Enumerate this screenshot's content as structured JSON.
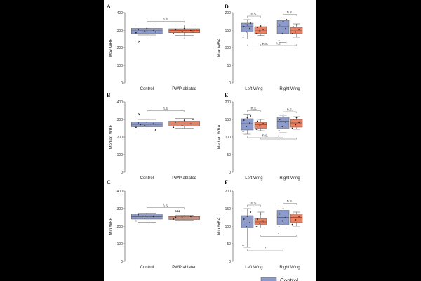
{
  "colors": {
    "control": "#8d9bcc",
    "pwp_ablated": "#ec8060",
    "axis": "#444444",
    "box_edge": "#555555"
  },
  "legend": {
    "control_label": "Control"
  },
  "chart_data": [
    {
      "panel": "A",
      "type": "box",
      "ylabel": "Max WBF",
      "ylim": [
        0,
        400
      ],
      "yticks": [
        0,
        100,
        200,
        300,
        400
      ],
      "categories": [
        "Control",
        "PWP ablated"
      ],
      "groups": [
        {
          "name": "Control",
          "q1": 280,
          "median": 300,
          "q3": 310,
          "whisker_low": 272,
          "whisker_high": 330,
          "points": [
            285,
            295,
            300,
            305,
            310,
            290
          ],
          "outliers": [
            235
          ]
        },
        {
          "name": "PWP ablated",
          "q1": 285,
          "median": 297,
          "q3": 308,
          "whisker_low": 270,
          "whisker_high": 330,
          "points": [
            280,
            295,
            300,
            305,
            310,
            290
          ],
          "outliers": []
        }
      ],
      "annotations": [
        {
          "label": "n.s.",
          "from": "Control",
          "to": "PWP ablated",
          "position": "above"
        },
        {
          "label": "",
          "from": "Control",
          "to": "PWP ablated",
          "position": "below"
        }
      ]
    },
    {
      "panel": "B",
      "type": "box",
      "ylabel": "Median WBF",
      "ylim": [
        0,
        400
      ],
      "yticks": [
        0,
        100,
        200,
        300,
        400
      ],
      "categories": [
        "Control",
        "PWP ablated"
      ],
      "groups": [
        {
          "name": "Control",
          "q1": 258,
          "median": 272,
          "q3": 285,
          "whisker_low": 235,
          "whisker_high": 300,
          "points": [
            255,
            265,
            275,
            280,
            285,
            240,
            270
          ],
          "outliers": [
            330
          ]
        },
        {
          "name": "PWP ablated",
          "q1": 262,
          "median": 275,
          "q3": 290,
          "whisker_low": 250,
          "whisker_high": 305,
          "points": [
            255,
            265,
            275,
            285,
            295,
            300
          ],
          "outliers": []
        }
      ],
      "annotations": [
        {
          "label": "n.s.",
          "from": "Control",
          "to": "PWP ablated",
          "position": "above"
        }
      ]
    },
    {
      "panel": "C",
      "type": "box",
      "ylabel": "Min WBF",
      "ylim": [
        0,
        400
      ],
      "yticks": [
        0,
        100,
        200,
        300,
        400
      ],
      "categories": [
        "Control",
        "PWP ablated"
      ],
      "groups": [
        {
          "name": "Control",
          "q1": 240,
          "median": 255,
          "q3": 270,
          "whisker_low": 222,
          "whisker_high": 275,
          "points": [
            230,
            245,
            255,
            265,
            270
          ],
          "outliers": []
        },
        {
          "name": "PWP ablated",
          "q1": 238,
          "median": 245,
          "q3": 255,
          "whisker_low": 235,
          "whisker_high": 262,
          "points": [
            240,
            248,
            255,
            250
          ],
          "outliers": [
            285,
            285
          ]
        }
      ],
      "annotations": [
        {
          "label": "n.s.",
          "from": "Control",
          "to": "PWP ablated",
          "position": "above"
        }
      ]
    },
    {
      "panel": "D",
      "type": "box",
      "ylabel": "Max WBA",
      "ylim": [
        0,
        200
      ],
      "yticks": [
        0,
        50,
        100,
        150,
        200
      ],
      "categories": [
        "Left Wing",
        "Right Wing"
      ],
      "groups": [
        {
          "name": "Control",
          "category": "Left Wing",
          "q1": 145,
          "median": 160,
          "q3": 170,
          "whisker_low": 125,
          "whisker_high": 180,
          "points": [
            130,
            145,
            155,
            160,
            165,
            170
          ],
          "outliers": []
        },
        {
          "name": "PWP ablated",
          "category": "Left Wing",
          "q1": 140,
          "median": 150,
          "q3": 160,
          "whisker_low": 135,
          "whisker_high": 165,
          "points": [
            140,
            148,
            152,
            158,
            162
          ],
          "outliers": []
        },
        {
          "name": "Control",
          "category": "Right Wing",
          "q1": 140,
          "median": 160,
          "q3": 178,
          "whisker_low": 115,
          "whisker_high": 185,
          "points": [
            120,
            140,
            155,
            165,
            175,
            180
          ],
          "outliers": []
        },
        {
          "name": "PWP ablated",
          "category": "Right Wing",
          "q1": 140,
          "median": 150,
          "q3": 158,
          "whisker_low": 130,
          "whisker_high": 168,
          "points": [
            140,
            145,
            152,
            160,
            165
          ],
          "outliers": []
        }
      ],
      "annotations": [
        {
          "label": "n.s.",
          "from": [
            0,
            0
          ],
          "to": [
            0,
            1
          ],
          "position": "above"
        },
        {
          "label": "n.s.",
          "from": [
            1,
            0
          ],
          "to": [
            1,
            1
          ],
          "position": "above"
        },
        {
          "label": "n.s.",
          "from": [
            0,
            0
          ],
          "to": [
            1,
            0
          ],
          "position": "below"
        },
        {
          "label": "n.s.",
          "from": [
            0,
            1
          ],
          "to": [
            1,
            1
          ],
          "position": "below"
        }
      ]
    },
    {
      "panel": "E",
      "type": "box",
      "ylabel": "Median WBA",
      "ylim": [
        0,
        200
      ],
      "yticks": [
        0,
        50,
        100,
        150,
        200
      ],
      "categories": [
        "Left Wing",
        "Right Wing"
      ],
      "groups": [
        {
          "name": "Control",
          "category": "Left Wing",
          "q1": 120,
          "median": 138,
          "q3": 152,
          "whisker_low": 108,
          "whisker_high": 165,
          "points": [
            115,
            130,
            140,
            148,
            155,
            160
          ],
          "outliers": []
        },
        {
          "name": "PWP ablated",
          "category": "Left Wing",
          "q1": 125,
          "median": 135,
          "q3": 142,
          "whisker_low": 118,
          "whisker_high": 150,
          "points": [
            122,
            132,
            138,
            145
          ],
          "outliers": []
        },
        {
          "name": "Control",
          "category": "Right Wing",
          "q1": 125,
          "median": 145,
          "q3": 157,
          "whisker_low": 112,
          "whisker_high": 162,
          "points": [
            118,
            130,
            142,
            150,
            158
          ],
          "outliers": []
        },
        {
          "name": "PWP ablated",
          "category": "Right Wing",
          "q1": 128,
          "median": 140,
          "q3": 150,
          "whisker_low": 122,
          "whisker_high": 158,
          "points": [
            125,
            135,
            142,
            150,
            155
          ],
          "outliers": []
        }
      ],
      "annotations": [
        {
          "label": "n.s.",
          "from": [
            0,
            0
          ],
          "to": [
            0,
            1
          ],
          "position": "above"
        },
        {
          "label": "n.s.",
          "from": [
            1,
            0
          ],
          "to": [
            1,
            1
          ],
          "position": "above"
        },
        {
          "label": "n.s.",
          "from": [
            0,
            0
          ],
          "to": [
            1,
            0
          ],
          "position": "below"
        },
        {
          "label": "*",
          "from": [
            0,
            1
          ],
          "to": [
            1,
            1
          ],
          "position": "below"
        }
      ]
    },
    {
      "panel": "F",
      "type": "box",
      "ylabel": "Min WBA",
      "ylim": [
        0,
        200
      ],
      "yticks": [
        0,
        50,
        100,
        150,
        200
      ],
      "categories": [
        "Left Wing",
        "Right Wing"
      ],
      "groups": [
        {
          "name": "Control",
          "category": "Left Wing",
          "q1": 95,
          "median": 115,
          "q3": 130,
          "whisker_low": 40,
          "whisker_high": 150,
          "points": [
            45,
            100,
            110,
            120,
            128,
            140
          ],
          "outliers": []
        },
        {
          "name": "PWP ablated",
          "category": "Left Wing",
          "q1": 105,
          "median": 112,
          "q3": 122,
          "whisker_low": 95,
          "whisker_high": 140,
          "points": [
            100,
            108,
            115,
            120,
            135
          ],
          "outliers": []
        },
        {
          "name": "Control",
          "category": "Right Wing",
          "q1": 105,
          "median": 125,
          "q3": 145,
          "whisker_low": 95,
          "whisker_high": 155,
          "points": [
            100,
            115,
            125,
            135,
            150
          ],
          "outliers": []
        },
        {
          "name": "PWP ablated",
          "category": "Right Wing",
          "q1": 110,
          "median": 125,
          "q3": 135,
          "whisker_low": 100,
          "whisker_high": 140,
          "points": [
            105,
            118,
            128,
            135
          ],
          "outliers": []
        }
      ],
      "annotations": [
        {
          "label": "n.s.",
          "from": [
            0,
            0
          ],
          "to": [
            0,
            1
          ],
          "position": "above"
        },
        {
          "label": "n.s.",
          "from": [
            1,
            0
          ],
          "to": [
            1,
            1
          ],
          "position": "above"
        },
        {
          "label": "*",
          "from": [
            0,
            0
          ],
          "to": [
            1,
            0
          ],
          "position": "below"
        },
        {
          "label": "*",
          "from": [
            0,
            1
          ],
          "to": [
            1,
            1
          ],
          "position": "below"
        }
      ]
    }
  ]
}
